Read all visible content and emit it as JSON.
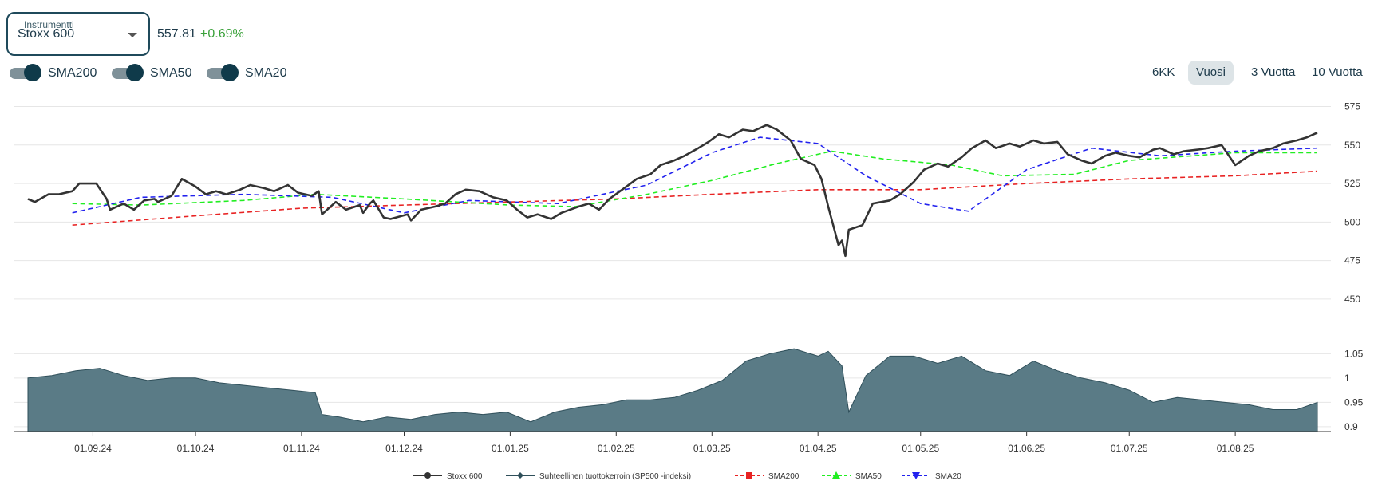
{
  "instrument": {
    "legend": "Instrumentti",
    "selected": "Stoxx 600",
    "price": "557.81",
    "change": "+0.69%"
  },
  "toggles": [
    {
      "label": "SMA200",
      "on": true
    },
    {
      "label": "SMA50",
      "on": true
    },
    {
      "label": "SMA20",
      "on": true
    }
  ],
  "ranges": [
    {
      "label": "6KK",
      "active": false
    },
    {
      "label": "Vuosi",
      "active": true
    },
    {
      "label": "3 Vuotta",
      "active": false
    },
    {
      "label": "10 Vuotta",
      "active": false
    }
  ],
  "colors": {
    "price": "#333333",
    "ratio_fill": "#5a7b86",
    "ratio_line": "#2f4f5a",
    "sma200": "#e82323",
    "sma50": "#22ee22",
    "sma20": "#2222ee"
  },
  "chart_data": [
    {
      "type": "line",
      "title": "",
      "x_ticks": [
        "01.09.24",
        "01.10.24",
        "01.11.24",
        "01.12.24",
        "01.01.25",
        "01.02.25",
        "01.03.25",
        "01.04.25",
        "01.05.25",
        "01.06.25",
        "01.07.25",
        "01.08.25"
      ],
      "y_ticks": [
        450,
        475,
        500,
        525,
        550,
        575
      ],
      "ylim": [
        437,
        582
      ],
      "x_start": "2024-08-13",
      "x_end": "2025-08-25",
      "legend_position": "bottom",
      "series": [
        {
          "name": "Stoxx 600",
          "points": [
            [
              "2024-08-13",
              515
            ],
            [
              "2024-08-15",
              513
            ],
            [
              "2024-08-19",
              518
            ],
            [
              "2024-08-22",
              518
            ],
            [
              "2024-08-26",
              520
            ],
            [
              "2024-08-28",
              525
            ],
            [
              "2024-09-02",
              525
            ],
            [
              "2024-09-05",
              515
            ],
            [
              "2024-09-06",
              508
            ],
            [
              "2024-09-10",
              512
            ],
            [
              "2024-09-13",
              508
            ],
            [
              "2024-09-16",
              514
            ],
            [
              "2024-09-19",
              515
            ],
            [
              "2024-09-20",
              513
            ],
            [
              "2024-09-24",
              517
            ],
            [
              "2024-09-27",
              528
            ],
            [
              "2024-10-01",
              523
            ],
            [
              "2024-10-04",
              518
            ],
            [
              "2024-10-07",
              520
            ],
            [
              "2024-10-10",
              518
            ],
            [
              "2024-10-14",
              521
            ],
            [
              "2024-10-17",
              524
            ],
            [
              "2024-10-21",
              522
            ],
            [
              "2024-10-24",
              520
            ],
            [
              "2024-10-28",
              524
            ],
            [
              "2024-10-31",
              519
            ],
            [
              "2024-11-04",
              517
            ],
            [
              "2024-11-06",
              520
            ],
            [
              "2024-11-07",
              505
            ],
            [
              "2024-11-11",
              513
            ],
            [
              "2024-11-14",
              508
            ],
            [
              "2024-11-18",
              511
            ],
            [
              "2024-11-19",
              506
            ],
            [
              "2024-11-21",
              512
            ],
            [
              "2024-11-22",
              514
            ],
            [
              "2024-11-25",
              503
            ],
            [
              "2024-11-27",
              502
            ],
            [
              "2024-12-02",
              505
            ],
            [
              "2024-12-03",
              501
            ],
            [
              "2024-12-06",
              508
            ],
            [
              "2024-12-10",
              510
            ],
            [
              "2024-12-13",
              512
            ],
            [
              "2024-12-16",
              518
            ],
            [
              "2024-12-19",
              521
            ],
            [
              "2024-12-23",
              520
            ],
            [
              "2024-12-27",
              516
            ],
            [
              "2024-12-31",
              514
            ],
            [
              "2025-01-03",
              508
            ],
            [
              "2025-01-06",
              503
            ],
            [
              "2025-01-09",
              505
            ],
            [
              "2025-01-13",
              502
            ],
            [
              "2025-01-16",
              506
            ],
            [
              "2025-01-21",
              510
            ],
            [
              "2025-01-24",
              512
            ],
            [
              "2025-01-27",
              508
            ],
            [
              "2025-01-30",
              515
            ],
            [
              "2025-02-04",
              523
            ],
            [
              "2025-02-07",
              528
            ],
            [
              "2025-02-11",
              531
            ],
            [
              "2025-02-14",
              537
            ],
            [
              "2025-02-18",
              540
            ],
            [
              "2025-02-21",
              543
            ],
            [
              "2025-02-25",
              548
            ],
            [
              "2025-02-28",
              552
            ],
            [
              "2025-03-03",
              557
            ],
            [
              "2025-03-06",
              555
            ],
            [
              "2025-03-10",
              560
            ],
            [
              "2025-03-13",
              559
            ],
            [
              "2025-03-17",
              563
            ],
            [
              "2025-03-20",
              560
            ],
            [
              "2025-03-24",
              553
            ],
            [
              "2025-03-27",
              541
            ],
            [
              "2025-03-31",
              537
            ],
            [
              "2025-04-02",
              528
            ],
            [
              "2025-04-04",
              510
            ],
            [
              "2025-04-07",
              485
            ],
            [
              "2025-04-08",
              488
            ],
            [
              "2025-04-09",
              478
            ],
            [
              "2025-04-10",
              495
            ],
            [
              "2025-04-14",
              498
            ],
            [
              "2025-04-17",
              512
            ],
            [
              "2025-04-22",
              514
            ],
            [
              "2025-04-25",
              518
            ],
            [
              "2025-04-29",
              526
            ],
            [
              "2025-05-02",
              534
            ],
            [
              "2025-05-06",
              538
            ],
            [
              "2025-05-09",
              536
            ],
            [
              "2025-05-13",
              542
            ],
            [
              "2025-05-16",
              548
            ],
            [
              "2025-05-20",
              553
            ],
            [
              "2025-05-23",
              548
            ],
            [
              "2025-05-27",
              551
            ],
            [
              "2025-05-30",
              549
            ],
            [
              "2025-06-03",
              553
            ],
            [
              "2025-06-06",
              551
            ],
            [
              "2025-06-10",
              552
            ],
            [
              "2025-06-13",
              544
            ],
            [
              "2025-06-17",
              540
            ],
            [
              "2025-06-20",
              538
            ],
            [
              "2025-06-24",
              543
            ],
            [
              "2025-06-27",
              545
            ],
            [
              "2025-07-01",
              543
            ],
            [
              "2025-07-04",
              542
            ],
            [
              "2025-07-08",
              547
            ],
            [
              "2025-07-10",
              548
            ],
            [
              "2025-07-14",
              544
            ],
            [
              "2025-07-17",
              546
            ],
            [
              "2025-07-21",
              547
            ],
            [
              "2025-07-24",
              548
            ],
            [
              "2025-07-28",
              550
            ],
            [
              "2025-08-01",
              537
            ],
            [
              "2025-08-05",
              543
            ],
            [
              "2025-08-08",
              546
            ],
            [
              "2025-08-12",
              548
            ],
            [
              "2025-08-15",
              551
            ],
            [
              "2025-08-19",
              553
            ],
            [
              "2025-08-22",
              555
            ],
            [
              "2025-08-25",
              558
            ]
          ]
        },
        {
          "name": "SMA200",
          "points": [
            [
              "2024-08-26",
              498
            ],
            [
              "2024-10-01",
              504
            ],
            [
              "2024-11-01",
              509
            ],
            [
              "2024-12-01",
              511
            ],
            [
              "2025-01-01",
              513
            ],
            [
              "2025-02-01",
              515
            ],
            [
              "2025-03-01",
              518
            ],
            [
              "2025-04-01",
              521
            ],
            [
              "2025-05-01",
              521
            ],
            [
              "2025-06-01",
              525
            ],
            [
              "2025-07-01",
              528
            ],
            [
              "2025-08-01",
              530
            ],
            [
              "2025-08-25",
              533
            ]
          ]
        },
        {
          "name": "SMA50",
          "points": [
            [
              "2024-08-26",
              512
            ],
            [
              "2024-09-15",
              511
            ],
            [
              "2024-10-15",
              514
            ],
            [
              "2024-11-05",
              518
            ],
            [
              "2024-12-01",
              515
            ],
            [
              "2025-01-01",
              511
            ],
            [
              "2025-01-20",
              510
            ],
            [
              "2025-02-10",
              518
            ],
            [
              "2025-03-01",
              527
            ],
            [
              "2025-03-20",
              538
            ],
            [
              "2025-04-05",
              546
            ],
            [
              "2025-04-20",
              541
            ],
            [
              "2025-05-10",
              537
            ],
            [
              "2025-05-25",
              530
            ],
            [
              "2025-06-15",
              531
            ],
            [
              "2025-07-01",
              540
            ],
            [
              "2025-08-01",
              545
            ],
            [
              "2025-08-25",
              545
            ]
          ]
        },
        {
          "name": "SMA20",
          "points": [
            [
              "2024-08-26",
              506
            ],
            [
              "2024-09-15",
              516
            ],
            [
              "2024-10-15",
              518
            ],
            [
              "2024-11-10",
              516
            ],
            [
              "2024-12-01",
              506
            ],
            [
              "2024-12-20",
              514
            ],
            [
              "2025-01-15",
              512
            ],
            [
              "2025-02-10",
              524
            ],
            [
              "2025-03-01",
              545
            ],
            [
              "2025-03-15",
              555
            ],
            [
              "2025-04-01",
              551
            ],
            [
              "2025-04-15",
              530
            ],
            [
              "2025-05-01",
              512
            ],
            [
              "2025-05-15",
              507
            ],
            [
              "2025-06-01",
              534
            ],
            [
              "2025-06-20",
              548
            ],
            [
              "2025-07-10",
              543
            ],
            [
              "2025-08-01",
              546
            ],
            [
              "2025-08-25",
              548
            ]
          ]
        }
      ]
    },
    {
      "type": "area",
      "series_name": "Suhteellinen tuottokerroin (SP500 -indeksi)",
      "y_ticks": [
        0.9,
        0.95,
        1,
        1.05
      ],
      "ylim": [
        0.89,
        1.08
      ],
      "points": [
        [
          "2024-08-13",
          1.0
        ],
        [
          "2024-08-20",
          1.005
        ],
        [
          "2024-08-27",
          1.015
        ],
        [
          "2024-09-03",
          1.02
        ],
        [
          "2024-09-10",
          1.005
        ],
        [
          "2024-09-17",
          0.995
        ],
        [
          "2024-09-24",
          1.0
        ],
        [
          "2024-10-01",
          1.0
        ],
        [
          "2024-10-08",
          0.99
        ],
        [
          "2024-10-15",
          0.985
        ],
        [
          "2024-10-22",
          0.98
        ],
        [
          "2024-10-29",
          0.975
        ],
        [
          "2024-11-05",
          0.97
        ],
        [
          "2024-11-07",
          0.925
        ],
        [
          "2024-11-12",
          0.92
        ],
        [
          "2024-11-19",
          0.91
        ],
        [
          "2024-11-26",
          0.92
        ],
        [
          "2024-12-03",
          0.915
        ],
        [
          "2024-12-10",
          0.925
        ],
        [
          "2024-12-17",
          0.93
        ],
        [
          "2024-12-24",
          0.925
        ],
        [
          "2024-12-31",
          0.93
        ],
        [
          "2025-01-07",
          0.91
        ],
        [
          "2025-01-14",
          0.93
        ],
        [
          "2025-01-21",
          0.94
        ],
        [
          "2025-01-28",
          0.945
        ],
        [
          "2025-02-04",
          0.955
        ],
        [
          "2025-02-11",
          0.955
        ],
        [
          "2025-02-18",
          0.96
        ],
        [
          "2025-02-25",
          0.975
        ],
        [
          "2025-03-04",
          0.995
        ],
        [
          "2025-03-11",
          1.035
        ],
        [
          "2025-03-18",
          1.05
        ],
        [
          "2025-03-25",
          1.06
        ],
        [
          "2025-04-01",
          1.045
        ],
        [
          "2025-04-04",
          1.055
        ],
        [
          "2025-04-08",
          1.025
        ],
        [
          "2025-04-10",
          0.93
        ],
        [
          "2025-04-15",
          1.005
        ],
        [
          "2025-04-22",
          1.045
        ],
        [
          "2025-04-29",
          1.045
        ],
        [
          "2025-05-06",
          1.03
        ],
        [
          "2025-05-13",
          1.045
        ],
        [
          "2025-05-20",
          1.015
        ],
        [
          "2025-05-27",
          1.005
        ],
        [
          "2025-06-03",
          1.035
        ],
        [
          "2025-06-10",
          1.015
        ],
        [
          "2025-06-17",
          1.0
        ],
        [
          "2025-06-24",
          0.99
        ],
        [
          "2025-07-01",
          0.975
        ],
        [
          "2025-07-08",
          0.95
        ],
        [
          "2025-07-15",
          0.96
        ],
        [
          "2025-07-22",
          0.955
        ],
        [
          "2025-07-29",
          0.95
        ],
        [
          "2025-08-05",
          0.945
        ],
        [
          "2025-08-12",
          0.935
        ],
        [
          "2025-08-19",
          0.935
        ],
        [
          "2025-08-25",
          0.95
        ]
      ]
    }
  ],
  "legend": [
    {
      "label": "Stoxx 600",
      "color": "#333333",
      "style": "solid",
      "marker": "circle"
    },
    {
      "label": "Suhteellinen tuottokerroin (SP500 -indeksi)",
      "color": "#2f4f5a",
      "style": "solid",
      "marker": "diamond"
    },
    {
      "label": "SMA200",
      "color": "#e82323",
      "style": "dashed",
      "marker": "square"
    },
    {
      "label": "SMA50",
      "color": "#22ee22",
      "style": "dashed",
      "marker": "triangle"
    },
    {
      "label": "SMA20",
      "color": "#2222ee",
      "style": "dashed",
      "marker": "triangle-down"
    }
  ]
}
